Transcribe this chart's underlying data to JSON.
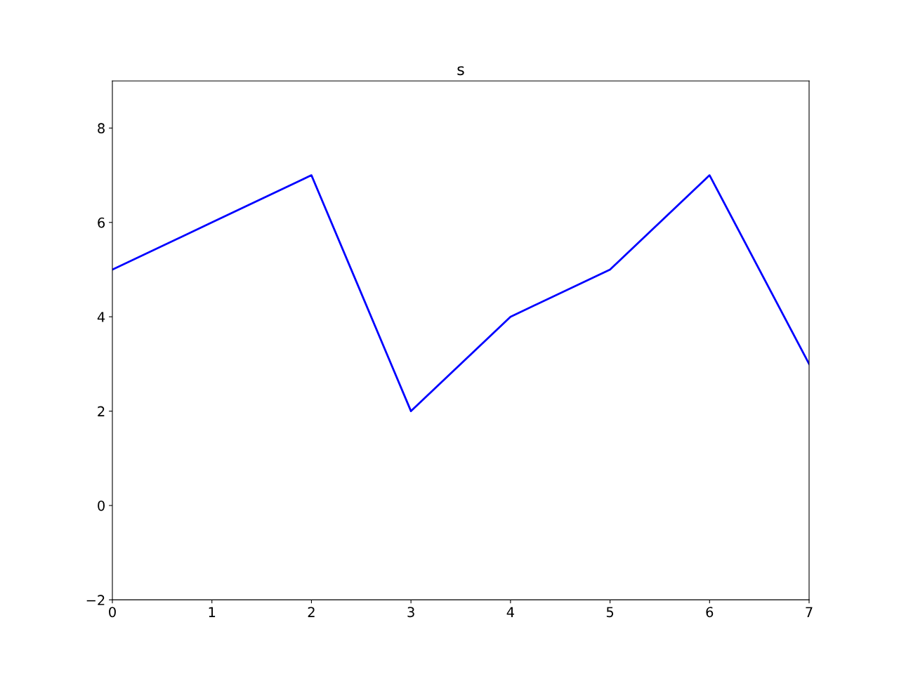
{
  "chart_data": {
    "type": "line",
    "title": "s",
    "x": [
      0,
      1,
      2,
      3,
      4,
      5,
      6,
      7
    ],
    "series": [
      {
        "color": "#0000ff",
        "values": [
          5,
          6,
          7,
          2,
          4,
          5,
          7,
          3
        ]
      }
    ],
    "xlim": [
      0,
      7
    ],
    "xticks": [
      0,
      1,
      2,
      3,
      4,
      5,
      6,
      7
    ],
    "ylim": [
      -2,
      9
    ],
    "yticks": [
      {
        "value": -2,
        "label": "−2"
      },
      0,
      2,
      4,
      6,
      8
    ],
    "grid": false,
    "marker": "none",
    "line_style": "solid"
  }
}
